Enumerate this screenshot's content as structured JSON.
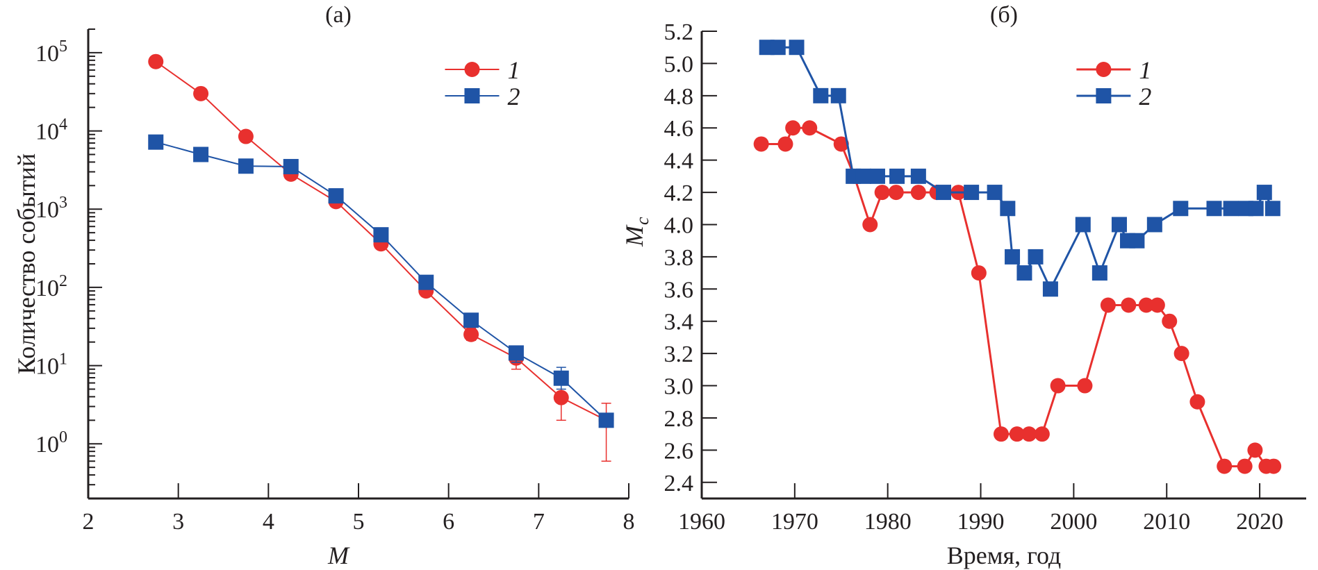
{
  "colors": {
    "series1": "#e8302e",
    "series2": "#1f54a6",
    "axis": "#231f20"
  },
  "chart_data": [
    {
      "type": "line",
      "title": "(a)",
      "xlabel": "M",
      "ylabel": "Количество событий",
      "xlim": [
        2,
        8
      ],
      "ylim": [
        0.2,
        200000
      ],
      "yscale": "log",
      "xticks": [
        "2",
        "3",
        "4",
        "5",
        "6",
        "7",
        "8"
      ],
      "yticks": [
        {
          "base": "10",
          "exp": "0"
        },
        {
          "base": "10",
          "exp": "1"
        },
        {
          "base": "10",
          "exp": "2"
        },
        {
          "base": "10",
          "exp": "3"
        },
        {
          "base": "10",
          "exp": "4"
        },
        {
          "base": "10",
          "exp": "5"
        }
      ],
      "legend": "top-right",
      "grid": false,
      "series": [
        {
          "name": "1",
          "marker": "circle",
          "x": [
            2.75,
            3.25,
            3.75,
            4.25,
            4.75,
            5.25,
            5.75,
            6.25,
            6.75,
            7.25,
            7.75
          ],
          "y": [
            77000,
            30000,
            8500,
            2800,
            1250,
            360,
            90,
            25,
            12.5,
            3.9,
            2
          ],
          "err_low": [
            null,
            null,
            null,
            null,
            null,
            null,
            null,
            21,
            9,
            2,
            0.6
          ],
          "err_high": [
            null,
            null,
            null,
            null,
            null,
            null,
            null,
            30,
            16,
            6,
            3.3
          ]
        },
        {
          "name": "2",
          "marker": "square",
          "x": [
            2.75,
            3.25,
            3.75,
            4.25,
            4.75,
            5.25,
            5.75,
            6.25,
            6.75,
            7.25,
            7.75
          ],
          "y": [
            7200,
            5000,
            3550,
            3500,
            1480,
            470,
            116,
            38,
            14.5,
            6.9,
            2
          ],
          "err_low": [
            null,
            null,
            null,
            null,
            null,
            null,
            null,
            null,
            11,
            5,
            null
          ],
          "err_high": [
            null,
            null,
            null,
            null,
            null,
            null,
            null,
            null,
            17,
            9.5,
            null
          ]
        }
      ]
    },
    {
      "type": "line",
      "title": "(б)",
      "xlabel": "Время, год",
      "ylabel": "Mc",
      "ylabel_main": "M",
      "ylabel_sub": "c",
      "xlim": [
        1960,
        2025
      ],
      "ylim": [
        2.3,
        5.2
      ],
      "xticks": [
        "1960",
        "1970",
        "1980",
        "1990",
        "2000",
        "2010",
        "2020"
      ],
      "yticks": [
        "2.4",
        "2.6",
        "2.8",
        "3.0",
        "3.2",
        "3.4",
        "3.6",
        "3.8",
        "4.0",
        "4.2",
        "4.4",
        "4.6",
        "4.8",
        "5.0",
        "5.2"
      ],
      "legend": "top-right",
      "grid": false,
      "series": [
        {
          "name": "1",
          "marker": "circle",
          "x": [
            1966.4,
            1969.0,
            1969.8,
            1971.6,
            1975.0,
            1976.4,
            1978.1,
            1979.4,
            1980.9,
            1983.3,
            1985.3,
            1987.6,
            1989.8,
            1992.2,
            1993.9,
            1995.2,
            1996.6,
            1998.3,
            2001.2,
            2003.7,
            2005.9,
            2007.8,
            2009.0,
            2010.3,
            2011.6,
            2013.3,
            2016.2,
            2018.4,
            2019.5,
            2020.7,
            2021.5
          ],
          "y": [
            4.5,
            4.5,
            4.6,
            4.6,
            4.5,
            4.3,
            4.0,
            4.2,
            4.2,
            4.2,
            4.2,
            4.2,
            3.7,
            2.7,
            2.7,
            2.7,
            2.7,
            3.0,
            3.0,
            3.5,
            3.5,
            3.5,
            3.5,
            3.4,
            3.2,
            2.9,
            2.5,
            2.5,
            2.6,
            2.5,
            2.5
          ]
        },
        {
          "name": "2",
          "marker": "square",
          "x": [
            1967.0,
            1968.2,
            1970.2,
            1972.8,
            1974.7,
            1976.3,
            1977.4,
            1978.9,
            1981.0,
            1983.3,
            1986.0,
            1989.0,
            1991.5,
            1992.9,
            1993.4,
            1994.7,
            1995.9,
            1997.5,
            2001.0,
            2002.8,
            2004.9,
            2005.8,
            2006.8,
            2008.7,
            2011.5,
            2015.1,
            2016.9,
            2018.5,
            2019.6,
            2020.5,
            2021.4
          ],
          "y": [
            5.1,
            5.1,
            5.1,
            4.8,
            4.8,
            4.3,
            4.3,
            4.3,
            4.3,
            4.3,
            4.2,
            4.2,
            4.2,
            4.1,
            3.8,
            3.7,
            3.8,
            3.6,
            4.0,
            3.7,
            4.0,
            3.9,
            3.9,
            4.0,
            4.1,
            4.1,
            4.1,
            4.1,
            4.1,
            4.2,
            4.1
          ]
        }
      ]
    }
  ]
}
